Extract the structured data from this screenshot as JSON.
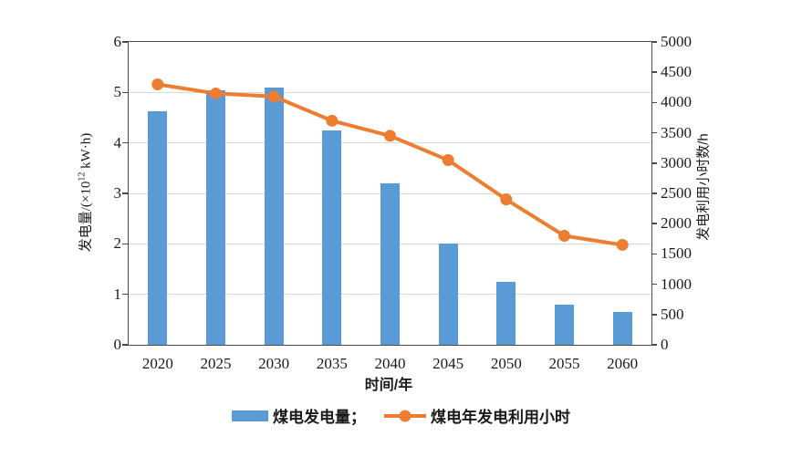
{
  "chart_data": {
    "type": "combo-bar-line",
    "categories": [
      "2020",
      "2025",
      "2030",
      "2035",
      "2040",
      "2045",
      "2050",
      "2055",
      "2060"
    ],
    "series": [
      {
        "name": "煤电发电量",
        "type": "bar",
        "axis": "left",
        "color": "#5B9BD5",
        "values": [
          4.63,
          5.05,
          5.1,
          4.25,
          3.2,
          2.0,
          1.25,
          0.8,
          0.65
        ]
      },
      {
        "name": "煤电年发电利用小时",
        "type": "line",
        "axis": "right",
        "color": "#ED7D31",
        "values": [
          4300,
          4150,
          4100,
          3700,
          3450,
          3050,
          2400,
          1800,
          1650
        ]
      }
    ],
    "left_axis": {
      "label_prefix": "发电量/(×10",
      "label_sup": "12",
      "label_suffix": " kW·h)",
      "min": 0,
      "max": 6,
      "step": 1
    },
    "right_axis": {
      "label": "发电利用小时数/h",
      "min": 0,
      "max": 5000,
      "step": 500
    },
    "x_axis": {
      "label": "时间/年"
    },
    "grid": "horizontal",
    "legend_position": "bottom-center",
    "colors": {
      "bar": "#5B9BD5",
      "line": "#ED7D31",
      "grid": "#D9D9D9",
      "axis": "#4A4A4A",
      "text": "#1A1A1A",
      "background": "#FFFFFF"
    }
  },
  "legend": {
    "items": [
      {
        "label": "煤电发电量；"
      },
      {
        "label": "煤电年发电利用小时"
      }
    ]
  }
}
